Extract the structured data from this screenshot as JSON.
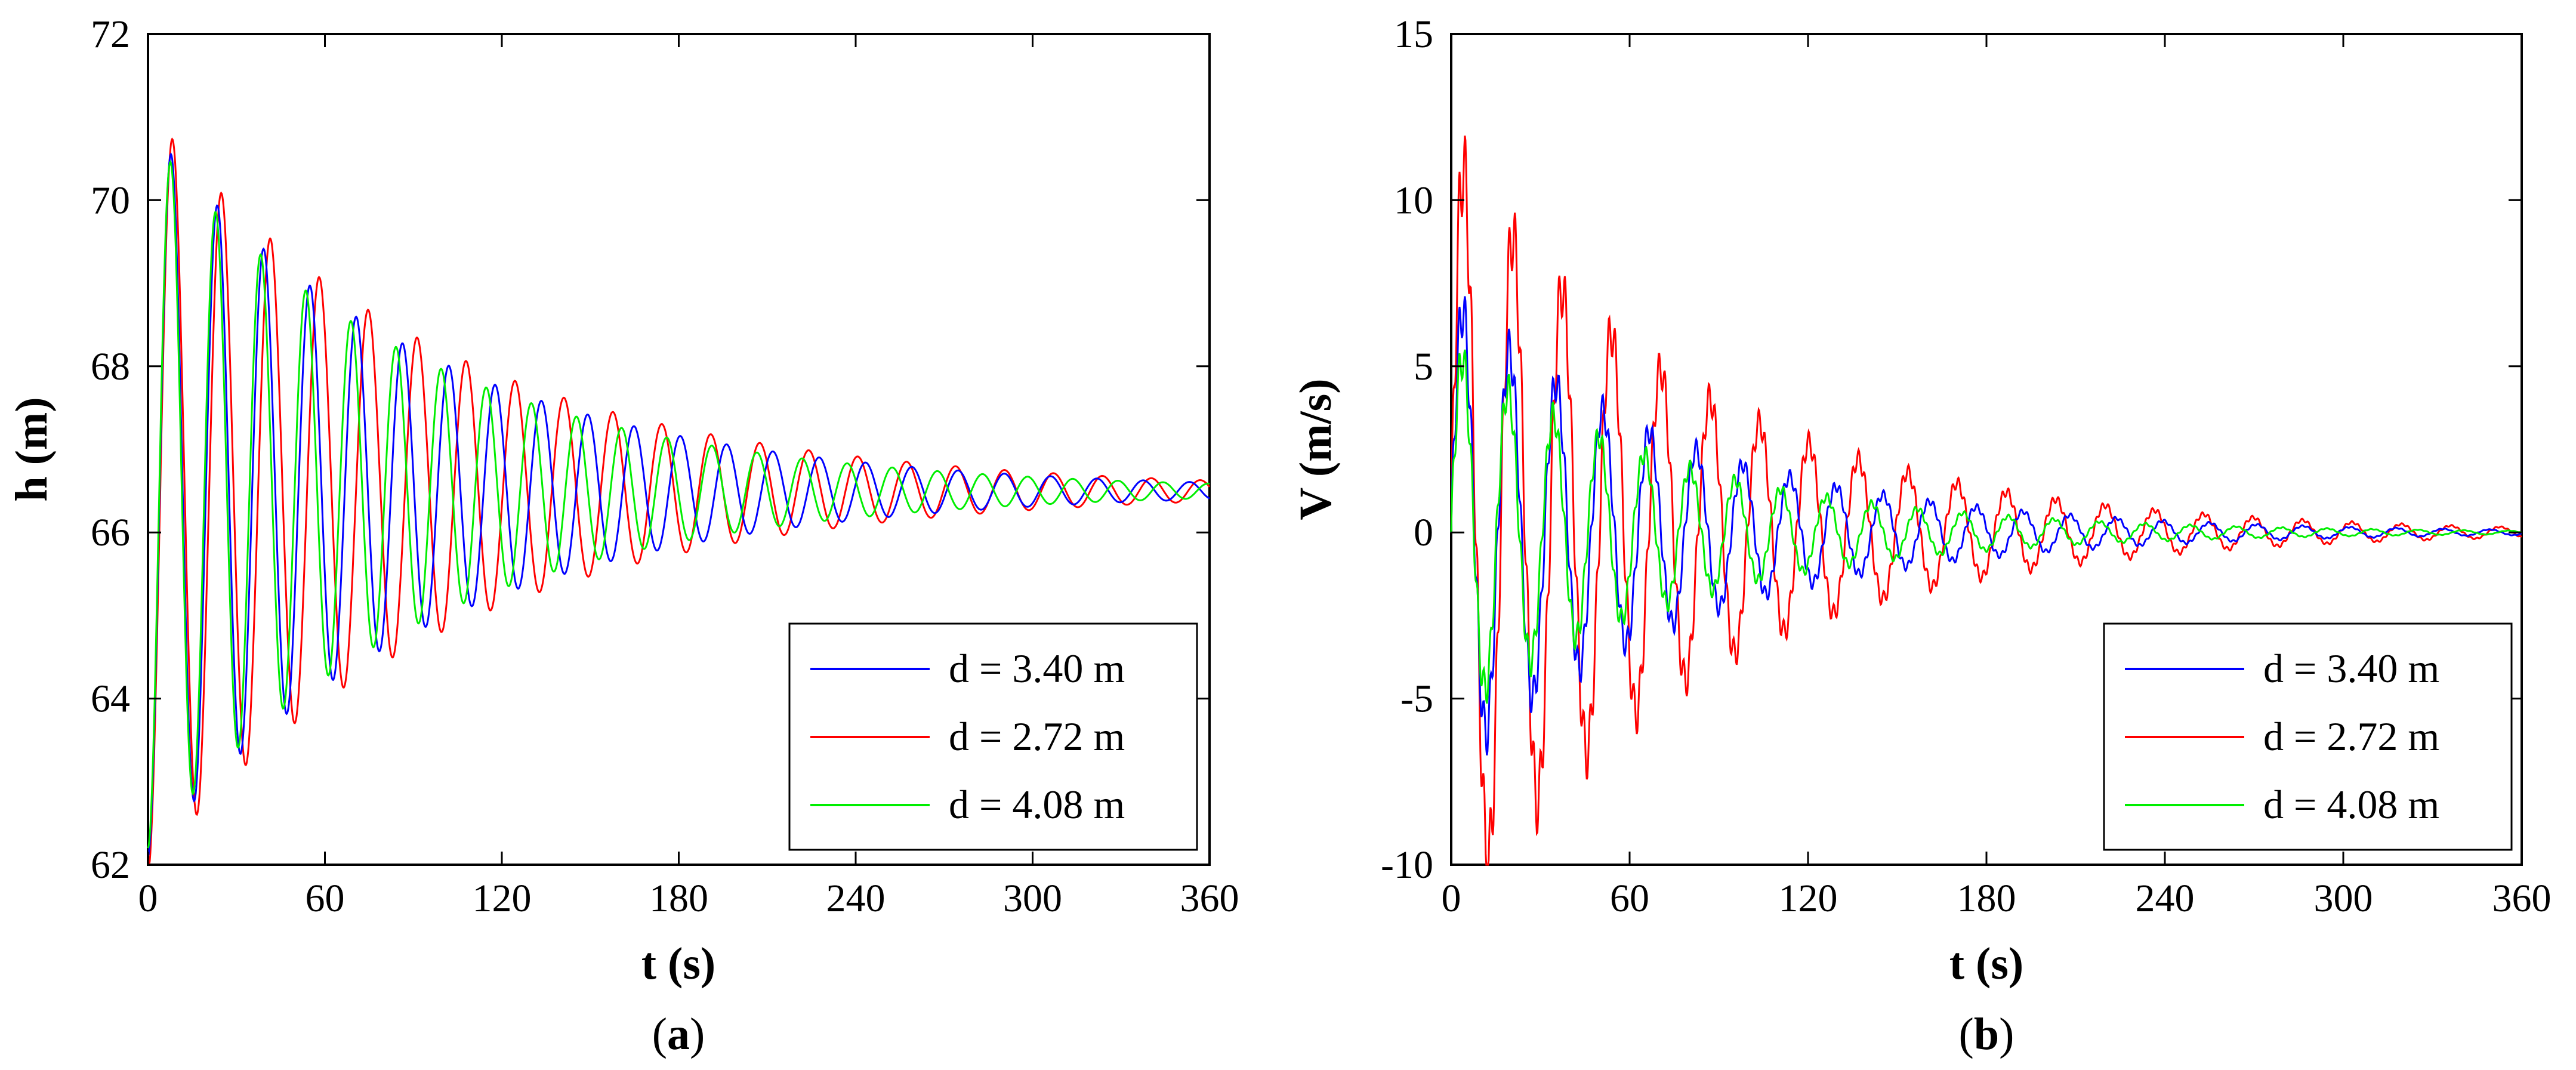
{
  "chart_data": [
    {
      "type": "line",
      "panel": "a",
      "caption": "a",
      "xlabel": "t (s)",
      "ylabel": "h (m)",
      "xlim": [
        0,
        360
      ],
      "ylim": [
        62,
        72
      ],
      "xticks": [
        0,
        60,
        120,
        180,
        240,
        300,
        360
      ],
      "yticks": [
        62,
        64,
        66,
        68,
        70,
        72
      ],
      "xtick_labels": [
        "0",
        "60",
        "120",
        "180",
        "240",
        "300",
        "360"
      ],
      "ytick_labels": [
        "62",
        "64",
        "66",
        "68",
        "70",
        "72"
      ],
      "grid": false,
      "legend_position": "bottom-right",
      "series": [
        {
          "name": "d = 3.40 m",
          "color": "#0000ff",
          "base": 66.5,
          "amp": 4.4,
          "period": 15.7,
          "decay": 0.0105,
          "phase_shift": 0
        },
        {
          "name": "d = 2.72 m",
          "color": "#ff0000",
          "base": 66.5,
          "amp": 4.6,
          "period": 16.6,
          "decay": 0.01,
          "phase_shift": 0
        },
        {
          "name": "d = 4.08 m",
          "color": "#00ee00",
          "base": 66.5,
          "amp": 4.3,
          "period": 15.3,
          "decay": 0.0108,
          "phase_shift": 0
        }
      ]
    },
    {
      "type": "line",
      "panel": "b",
      "caption": "b",
      "xlabel": "t (s)",
      "ylabel": "V (m/s)",
      "xlim": [
        0,
        360
      ],
      "ylim": [
        -10,
        15
      ],
      "xticks": [
        0,
        60,
        120,
        180,
        240,
        300,
        360
      ],
      "yticks": [
        -10,
        -5,
        0,
        5,
        10,
        15
      ],
      "xtick_labels": [
        "0",
        "60",
        "120",
        "180",
        "240",
        "300",
        "360"
      ],
      "ytick_labels": [
        "-10",
        "-5",
        "0",
        "5",
        "10",
        "15"
      ],
      "grid": false,
      "legend_position": "bottom-right",
      "series": [
        {
          "name": "d = 3.40 m",
          "color": "#0000ff",
          "base": 0,
          "amp": 7.0,
          "period": 15.7,
          "decay": 0.0125,
          "phase_shift": 0.25
        },
        {
          "name": "d = 2.72 m",
          "color": "#ff0000",
          "base": 0,
          "amp": 11.5,
          "period": 16.6,
          "decay": 0.012,
          "phase_shift": 0.25
        },
        {
          "name": "d = 4.08 m",
          "color": "#00ee00",
          "base": 0,
          "amp": 5.5,
          "period": 15.3,
          "decay": 0.013,
          "phase_shift": 0.25
        }
      ]
    }
  ]
}
